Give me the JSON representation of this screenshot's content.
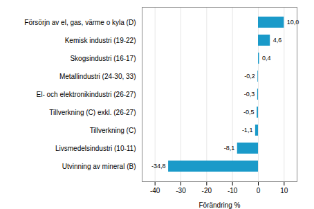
{
  "chart_data": {
    "type": "bar",
    "orientation": "horizontal",
    "categories": [
      "Utvinning av mineral (B)",
      "Livsmedelsindustri (10-11)",
      "Tillverkning (C)",
      "Tillverkning (C) exkl. (26-27)",
      "El- och elektronikindustri (26-27)",
      "Metallindustri (24-30, 33)",
      "Skogsindustri (16-17)",
      "Kemisk industri (19-22)",
      "Försörjn av el, gas, värme o kyla (D)"
    ],
    "values": [
      -34.8,
      -8.1,
      -1.1,
      -0.5,
      -0.3,
      -0.2,
      0.4,
      4.6,
      10.0
    ],
    "value_labels": [
      "-34,8",
      "-8,1",
      "-1,1",
      "-0,5",
      "-0,3",
      "-0,2",
      "0,4",
      "4,6",
      "10,0"
    ],
    "data_labels": true,
    "color": "#1a9ac9",
    "xlabel": "Förändring %",
    "xlim": [
      -45,
      15
    ],
    "xticks": [
      -40,
      -30,
      -20,
      -10,
      0,
      10
    ],
    "grid": true
  }
}
